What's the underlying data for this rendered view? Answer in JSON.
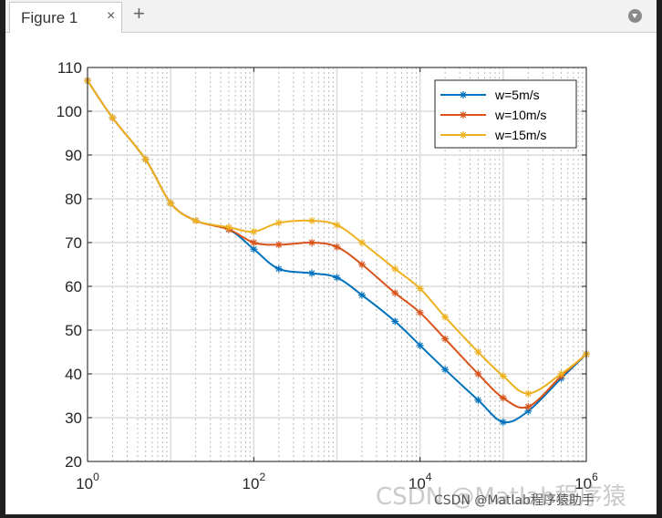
{
  "window": {
    "tab_label": "Figure 1",
    "close_glyph": "×",
    "add_glyph": "+",
    "menu_icon": "chevron-down-circle-icon"
  },
  "watermark": {
    "large": "CSDN @Matlab程序猿",
    "small": "CSDN @Matlab程序猿助手"
  },
  "chart_data": {
    "type": "line",
    "xscale": "log",
    "xlim": [
      1,
      1000000
    ],
    "ylim": [
      20,
      110
    ],
    "yticks": [
      20,
      30,
      40,
      50,
      60,
      70,
      80,
      90,
      100,
      110
    ],
    "xticks": [
      {
        "value": 1,
        "base": "10",
        "exp": "0"
      },
      {
        "value": 100,
        "base": "10",
        "exp": "2"
      },
      {
        "value": 10000,
        "base": "10",
        "exp": "4"
      },
      {
        "value": 1000000,
        "base": "10",
        "exp": "6"
      }
    ],
    "grid": true,
    "minor_grid": true,
    "legend_position": "top-right",
    "colors": {
      "w5": "#0072BD",
      "w10": "#D95319",
      "w15": "#EDB120"
    },
    "series": [
      {
        "name": "w=5m/s",
        "color": "#0072BD",
        "x": [
          1,
          2,
          5,
          10,
          20,
          50,
          100,
          200,
          500,
          1000,
          2000,
          5000,
          10000,
          20000,
          50000,
          100000,
          200000,
          500000,
          1000000
        ],
        "y": [
          107,
          98.5,
          89,
          79,
          75,
          73,
          68.5,
          64,
          63,
          62,
          58,
          52,
          46.5,
          41,
          34,
          29,
          31.5,
          39,
          44.5
        ]
      },
      {
        "name": "w=10m/s",
        "color": "#D95319",
        "x": [
          1,
          2,
          5,
          10,
          20,
          50,
          100,
          200,
          500,
          1000,
          2000,
          5000,
          10000,
          20000,
          50000,
          100000,
          200000,
          500000,
          1000000
        ],
        "y": [
          107,
          98.5,
          89,
          79,
          75,
          73,
          70,
          69.5,
          70,
          69,
          65,
          58.5,
          54,
          48,
          40,
          34.5,
          32.5,
          39.5,
          44.5
        ]
      },
      {
        "name": "w=15m/s",
        "color": "#EDB120",
        "x": [
          1,
          2,
          5,
          10,
          20,
          50,
          100,
          200,
          500,
          1000,
          2000,
          5000,
          10000,
          20000,
          50000,
          100000,
          200000,
          500000,
          1000000
        ],
        "y": [
          107,
          98.5,
          89,
          79,
          75,
          73.5,
          72.5,
          74.5,
          75,
          74,
          70,
          64,
          59.5,
          53,
          45,
          39.5,
          35.5,
          40,
          44.5
        ]
      }
    ]
  }
}
